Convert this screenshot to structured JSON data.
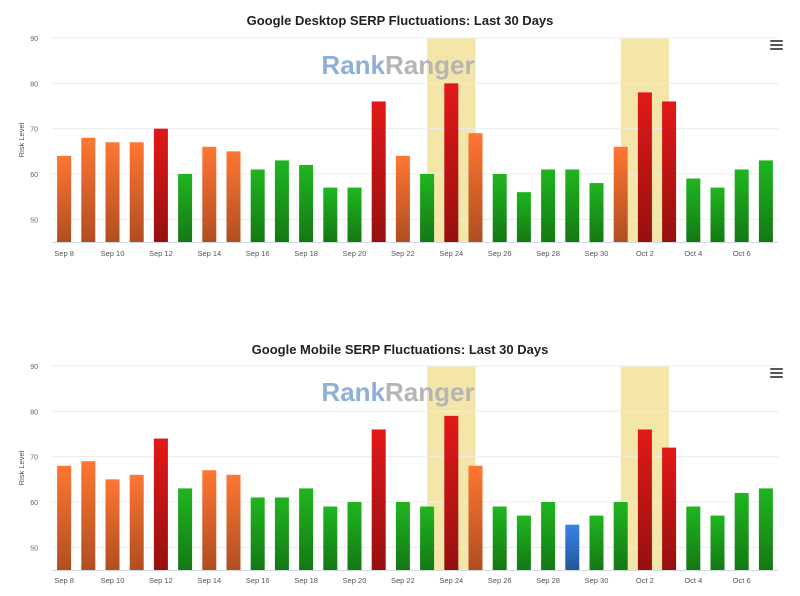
{
  "watermark": {
    "part1": "Rank",
    "part2": "Ranger",
    "color1": "#8fb0d6",
    "color2": "#b5b5b5"
  },
  "menu_icon": "hamburger-menu-icon",
  "colors": {
    "high": "#c01414",
    "elevated": "#e2642a",
    "normal": "#1a9a1a",
    "low": "#2f6fc4",
    "highlight": "#f3e6a8"
  },
  "chart_data": [
    {
      "type": "bar",
      "title": "Google Desktop SERP Fluctuations: Last 30 Days",
      "ylabel": "Risk Level",
      "ylim": [
        45,
        90
      ],
      "yticks": [
        50,
        60,
        70,
        80,
        90
      ],
      "xtick_labels": [
        "Sep 8",
        "Sep 10",
        "Sep 12",
        "Sep 14",
        "Sep 16",
        "Sep 18",
        "Sep 20",
        "Sep 22",
        "Sep 24",
        "Sep 26",
        "Sep 28",
        "Sep 30",
        "Oct 2",
        "Oct 4",
        "Oct 6"
      ],
      "categories": [
        "Sep 8",
        "Sep 9",
        "Sep 10",
        "Sep 11",
        "Sep 12",
        "Sep 13",
        "Sep 14",
        "Sep 15",
        "Sep 16",
        "Sep 17",
        "Sep 18",
        "Sep 19",
        "Sep 20",
        "Sep 21",
        "Sep 22",
        "Sep 23",
        "Sep 24",
        "Sep 25",
        "Sep 26",
        "Sep 27",
        "Sep 28",
        "Sep 29",
        "Sep 30",
        "Oct 1",
        "Oct 2",
        "Oct 3",
        "Oct 4",
        "Oct 5",
        "Oct 6",
        "Oct 7"
      ],
      "values": [
        64,
        68,
        67,
        67,
        70,
        60,
        66,
        65,
        61,
        63,
        62,
        57,
        57,
        76,
        64,
        60,
        80,
        69,
        60,
        56,
        61,
        61,
        58,
        66,
        78,
        76,
        59,
        57,
        61,
        63
      ],
      "highlights": [
        [
          "Sep 24",
          "Sep 24"
        ],
        [
          "Oct 2",
          "Oct 2"
        ]
      ],
      "grid": true
    },
    {
      "type": "bar",
      "title": "Google Mobile SERP Fluctuations: Last 30 Days",
      "ylabel": "Risk Level",
      "ylim": [
        45,
        90
      ],
      "yticks": [
        50,
        60,
        70,
        80,
        90
      ],
      "xtick_labels": [
        "Sep 8",
        "Sep 10",
        "Sep 12",
        "Sep 14",
        "Sep 16",
        "Sep 18",
        "Sep 20",
        "Sep 22",
        "Sep 24",
        "Sep 26",
        "Sep 28",
        "Sep 30",
        "Oct 2",
        "Oct 4",
        "Oct 6"
      ],
      "categories": [
        "Sep 8",
        "Sep 9",
        "Sep 10",
        "Sep 11",
        "Sep 12",
        "Sep 13",
        "Sep 14",
        "Sep 15",
        "Sep 16",
        "Sep 17",
        "Sep 18",
        "Sep 19",
        "Sep 20",
        "Sep 21",
        "Sep 22",
        "Sep 23",
        "Sep 24",
        "Sep 25",
        "Sep 26",
        "Sep 27",
        "Sep 28",
        "Sep 29",
        "Sep 30",
        "Oct 1",
        "Oct 2",
        "Oct 3",
        "Oct 4",
        "Oct 5",
        "Oct 6",
        "Oct 7"
      ],
      "values": [
        68,
        69,
        65,
        66,
        74,
        63,
        67,
        66,
        61,
        61,
        63,
        59,
        60,
        76,
        60,
        59,
        79,
        68,
        59,
        57,
        60,
        55,
        57,
        60,
        76,
        72,
        59,
        57,
        62,
        63
      ],
      "highlights": [
        [
          "Sep 24",
          "Sep 24"
        ],
        [
          "Oct 2",
          "Oct 2"
        ]
      ],
      "grid": true
    }
  ]
}
